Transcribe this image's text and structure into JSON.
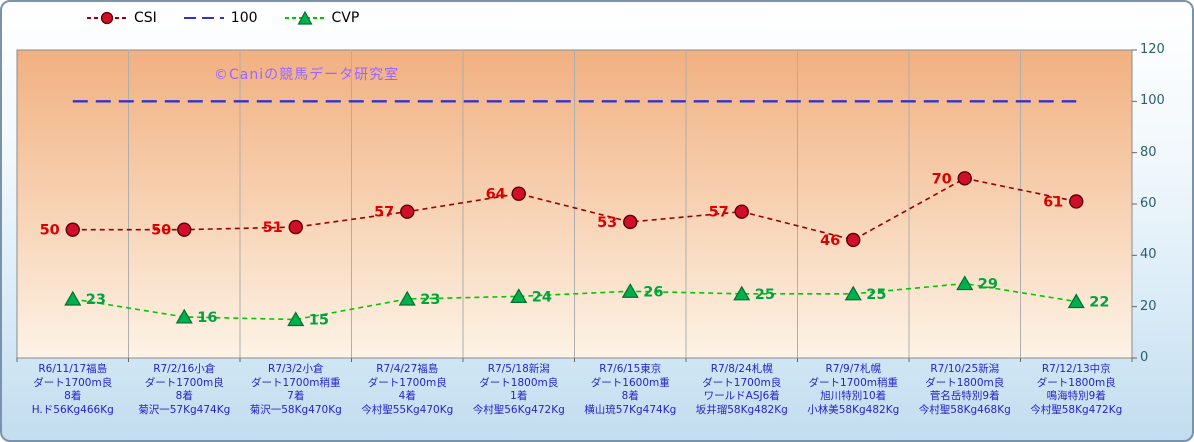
{
  "watermark": "©Caniの競馬データ研究室",
  "legend": [
    {
      "label": "CSI",
      "marker": "circle",
      "color": "#d20f2a",
      "line_color": "#990000"
    },
    {
      "label": "100",
      "marker": "line",
      "color": "#3333cc",
      "line_color": "#3333cc"
    },
    {
      "label": "CVP",
      "marker": "triangle",
      "color": "#00b050",
      "line_color": "#00c800"
    }
  ],
  "chart_data": {
    "type": "line",
    "title": "",
    "categories": [
      [
        "R6/11/17福島",
        "ダート1700m良",
        "8着",
        "H.ド56Kg466Kg"
      ],
      [
        "R7/2/16小倉",
        "ダート1700m良",
        "8着",
        "菊沢一57Kg474Kg"
      ],
      [
        "R7/3/2小倉",
        "ダート1700m稍重",
        "7着",
        "菊沢一58Kg470Kg"
      ],
      [
        "R7/4/27福島",
        "ダート1700m良",
        "4着",
        "今村聖55Kg470Kg"
      ],
      [
        "R7/5/18新潟",
        "ダート1800m良",
        "1着",
        "今村聖56Kg472Kg"
      ],
      [
        "R7/6/15東京",
        "ダート1600m重",
        "8着",
        "横山琉57Kg474Kg"
      ],
      [
        "R7/8/24札幌",
        "ダート1700m良",
        "ワールドASJ6着",
        "坂井瑠58Kg482Kg"
      ],
      [
        "R7/9/7札幌",
        "ダート1700m稍重",
        "旭川特別10着",
        "小林美58Kg482Kg"
      ],
      [
        "R7/10/25新潟",
        "ダート1800m良",
        "菅名岳特別9着",
        "今村聖58Kg468Kg"
      ],
      [
        "R7/12/13中京",
        "ダート1800m良",
        "鳴海特別9着",
        "今村聖58Kg472Kg"
      ]
    ],
    "series": [
      {
        "name": "CSI",
        "values": [
          50,
          50,
          51,
          57,
          64,
          53,
          57,
          46,
          70,
          61
        ],
        "color": "#990000",
        "dash": "5 4",
        "marker": "circle",
        "marker_color": "#d20f2a",
        "label_color": "#dd0000",
        "label_side": "left"
      },
      {
        "name": "100",
        "values": [
          100,
          100,
          100,
          100,
          100,
          100,
          100,
          100,
          100,
          100
        ],
        "color": "#3333cc",
        "dash": "15 8",
        "marker": "none"
      },
      {
        "name": "CVP",
        "values": [
          23,
          16,
          15,
          23,
          24,
          26,
          25,
          25,
          29,
          22
        ],
        "color": "#00c800",
        "dash": "5 4",
        "marker": "triangle",
        "marker_color": "#00b050",
        "label_color": "#00a43e",
        "label_side": "right"
      }
    ],
    "ylim": [
      0,
      120
    ],
    "yticks": [
      0,
      20,
      40,
      60,
      80,
      100,
      120
    ],
    "legend_position": "top",
    "grid": "vertical"
  }
}
